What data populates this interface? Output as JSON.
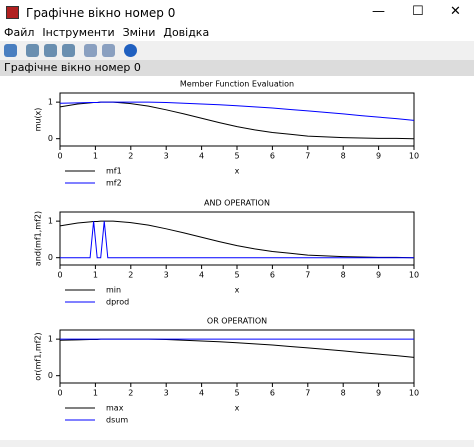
{
  "window": {
    "title": "Графічне вікно номер 0",
    "menu": [
      "Файл",
      "Інструменти",
      "Зміни",
      "Довідка"
    ],
    "status": "Графічне вікно номер 0"
  },
  "chart_data": [
    {
      "type": "line",
      "title": "Member Function Evaluation",
      "xlabel": "x",
      "ylabel": "mu(x)",
      "x": [
        0,
        0.5,
        0.85,
        0.95,
        1.05,
        1.15,
        1.25,
        1.35,
        1.5,
        2,
        2.5,
        3,
        3.5,
        4,
        4.5,
        5,
        5.5,
        6,
        6.5,
        7,
        7.5,
        8,
        8.5,
        9,
        9.5,
        10
      ],
      "series": [
        {
          "name": "mf1",
          "color": "#000000",
          "values": [
            0.87,
            0.95,
            0.98,
            0.99,
            0.99,
            1,
            1,
            1,
            1,
            0.96,
            0.89,
            0.79,
            0.68,
            0.56,
            0.44,
            0.33,
            0.24,
            0.17,
            0.12,
            0.07,
            0.05,
            0.03,
            0.02,
            0.01,
            0.01,
            0
          ]
        },
        {
          "name": "mf2",
          "color": "#0000ff",
          "values": [
            0.97,
            0.98,
            0.99,
            0.99,
            0.99,
            1,
            1,
            1,
            1,
            1,
            1,
            0.99,
            0.97,
            0.95,
            0.93,
            0.9,
            0.87,
            0.84,
            0.8,
            0.76,
            0.72,
            0.68,
            0.63,
            0.59,
            0.55,
            0.5
          ]
        }
      ],
      "xlim": [
        0,
        10
      ],
      "ylim": [
        -0.2,
        1.25
      ],
      "xticks": [
        0,
        1,
        2,
        3,
        4,
        5,
        6,
        7,
        8,
        9,
        10
      ],
      "yticks": [
        0,
        1
      ],
      "legend": "bottom"
    },
    {
      "type": "line",
      "title": "AND OPERATION",
      "xlabel": "x",
      "ylabel": "and(mf1,mf2)",
      "x": [
        0,
        0.5,
        0.85,
        0.95,
        1.05,
        1.15,
        1.25,
        1.35,
        1.5,
        2,
        2.5,
        3,
        3.5,
        4,
        4.5,
        5,
        5.5,
        6,
        6.5,
        7,
        7.5,
        8,
        8.5,
        9,
        9.5,
        10
      ],
      "series": [
        {
          "name": "min",
          "color": "#000000",
          "values": [
            0.87,
            0.95,
            0.98,
            0.99,
            0.99,
            1,
            1,
            1,
            1,
            0.96,
            0.89,
            0.79,
            0.68,
            0.56,
            0.44,
            0.33,
            0.24,
            0.17,
            0.12,
            0.07,
            0.05,
            0.03,
            0.02,
            0.01,
            0.01,
            0
          ]
        },
        {
          "name": "dprod",
          "color": "#0000ff",
          "values": [
            0,
            0,
            0,
            1,
            0,
            0,
            1,
            0,
            0,
            0,
            0,
            0,
            0,
            0,
            0,
            0,
            0,
            0,
            0,
            0,
            0,
            0,
            0,
            0,
            0,
            0
          ]
        }
      ],
      "xlim": [
        0,
        10
      ],
      "ylim": [
        -0.2,
        1.25
      ],
      "xticks": [
        0,
        1,
        2,
        3,
        4,
        5,
        6,
        7,
        8,
        9,
        10
      ],
      "yticks": [
        0,
        1
      ],
      "legend": "bottom"
    },
    {
      "type": "line",
      "title": "OR OPERATION",
      "xlabel": "x",
      "ylabel": "or(mf1,mf2)",
      "x": [
        0,
        0.5,
        0.85,
        0.95,
        1.05,
        1.15,
        1.25,
        1.35,
        1.5,
        2,
        2.5,
        3,
        3.5,
        4,
        4.5,
        5,
        5.5,
        6,
        6.5,
        7,
        7.5,
        8,
        8.5,
        9,
        9.5,
        10
      ],
      "series": [
        {
          "name": "max",
          "color": "#000000",
          "values": [
            0.97,
            0.98,
            0.99,
            0.99,
            0.99,
            1,
            1,
            1,
            1,
            1,
            1,
            0.99,
            0.97,
            0.95,
            0.93,
            0.9,
            0.87,
            0.84,
            0.8,
            0.76,
            0.72,
            0.68,
            0.63,
            0.59,
            0.55,
            0.5
          ]
        },
        {
          "name": "dsum",
          "color": "#0000ff",
          "values": [
            1,
            1,
            1,
            1,
            1,
            1,
            1,
            1,
            1,
            1,
            1,
            1,
            1,
            1,
            1,
            1,
            1,
            1,
            1,
            1,
            1,
            1,
            1,
            1,
            1,
            1
          ]
        }
      ],
      "xlim": [
        0,
        10
      ],
      "ylim": [
        -0.2,
        1.25
      ],
      "xticks": [
        0,
        1,
        2,
        3,
        4,
        5,
        6,
        7,
        8,
        9,
        10
      ],
      "yticks": [
        0,
        1
      ],
      "legend": "bottom"
    }
  ]
}
